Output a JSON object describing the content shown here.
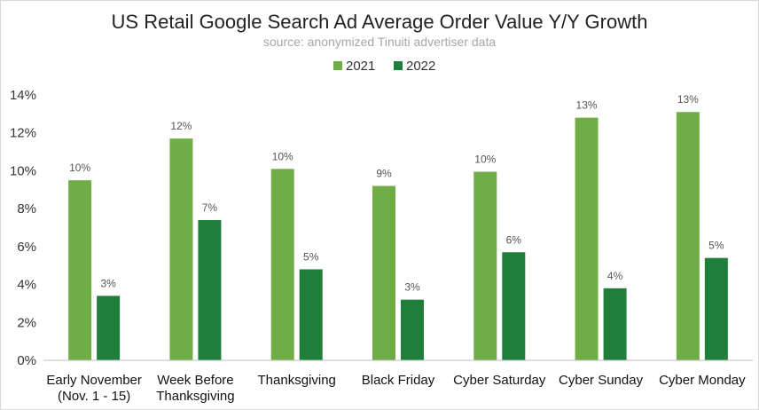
{
  "chart_data": {
    "type": "bar",
    "title": "US Retail Google Search Ad Average Order Value Y/Y Growth",
    "subtitle": "source: anonymized Tinuiti advertiser data",
    "categories": [
      [
        "Early November",
        "(Nov. 1 - 15)"
      ],
      [
        "Week Before",
        "Thanksgiving"
      ],
      [
        "Thanksgiving"
      ],
      [
        "Black Friday"
      ],
      [
        "Cyber Saturday"
      ],
      [
        "Cyber Sunday"
      ],
      [
        "Cyber Monday"
      ]
    ],
    "series": [
      {
        "name": "2021",
        "color": "#70ad47",
        "values": [
          9.5,
          11.7,
          10.1,
          9.2,
          9.95,
          12.8,
          13.1
        ],
        "labels": [
          "10%",
          "12%",
          "10%",
          "9%",
          "10%",
          "13%",
          "13%"
        ]
      },
      {
        "name": "2022",
        "color": "#1e7e3a",
        "values": [
          3.4,
          7.4,
          4.8,
          3.2,
          5.7,
          3.8,
          5.4
        ],
        "labels": [
          "3%",
          "7%",
          "5%",
          "3%",
          "6%",
          "4%",
          "5%"
        ]
      }
    ],
    "yticks": [
      "0%",
      "2%",
      "4%",
      "6%",
      "8%",
      "10%",
      "12%",
      "14%"
    ],
    "ylim": [
      0,
      14
    ],
    "grid": false,
    "legend_position": "top-center"
  }
}
